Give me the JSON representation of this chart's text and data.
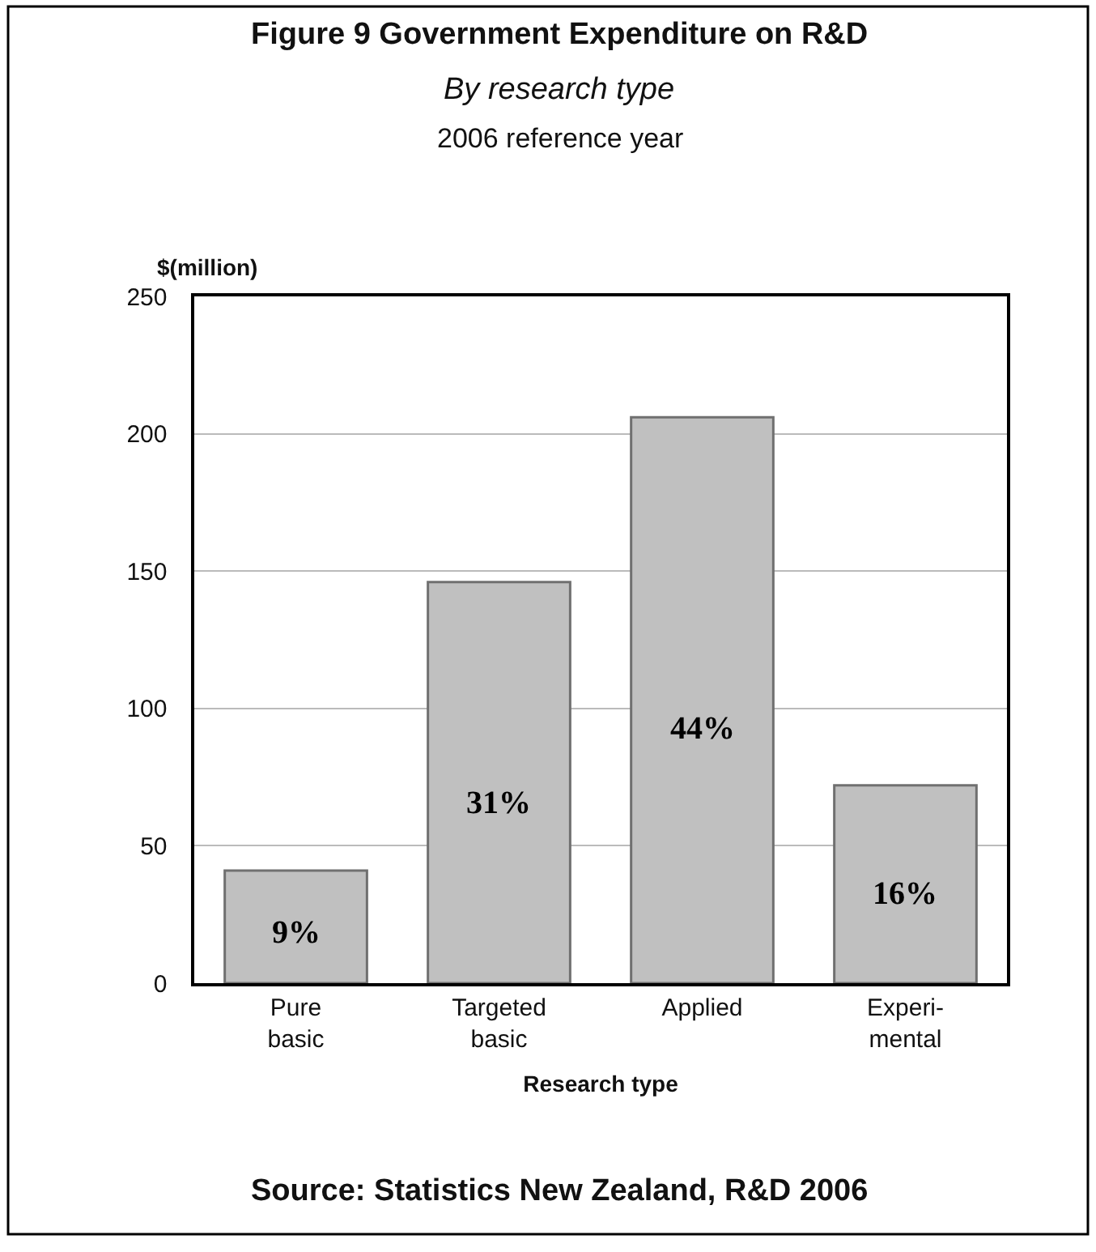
{
  "chart_data": {
    "type": "bar",
    "title": "Figure 9 Government Expenditure on R&D",
    "subtitle": "By research type",
    "annotations": [
      "2006 reference year",
      "Source: Statistics New Zealand, R&D 2006",
      "9%",
      "31%",
      "44%",
      "16%"
    ],
    "xlabel": "Research type",
    "ylabel": "$(million)",
    "categories": [
      "Pure\nbasic",
      "Targeted\nbasic",
      "Applied",
      "Experi-\nmental"
    ],
    "values": [
      41,
      146,
      206,
      72
    ],
    "color": "#c0c0c0",
    "ylim": [
      0,
      250
    ],
    "yticks": [
      0,
      50,
      100,
      150,
      200,
      250
    ],
    "grid": "y",
    "legend": false
  }
}
